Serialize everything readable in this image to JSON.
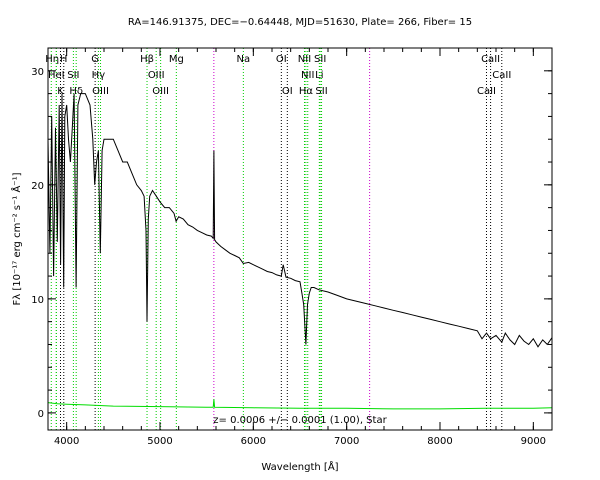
{
  "chart_data": {
    "type": "line",
    "title": "RA=146.91375, DEC=−0.64448, MJD=51630, Plate= 266, Fiber= 15",
    "xlabel": "Wavelength [Å]",
    "ylabel": "Fλ [10⁻¹⁷ erg cm⁻² s⁻¹ Å⁻¹]",
    "xlim": [
      3800,
      9200
    ],
    "ylim": [
      -1.5,
      32
    ],
    "x_ticks": [
      4000,
      5000,
      6000,
      7000,
      8000,
      9000
    ],
    "y_ticks": [
      0,
      10,
      20,
      30
    ],
    "redshift_label": "z= 0.0006 +/− 0.0001 (1.00), Star",
    "colors": {
      "spectrum": "#000000",
      "error": "#00dd00",
      "line_marker": "#00cc00",
      "sky_marker": "#cc00cc",
      "absorption_marker": "#000000"
    },
    "series": [
      {
        "name": "flux",
        "x": [
          3800,
          3820,
          3840,
          3860,
          3880,
          3900,
          3920,
          3935,
          3950,
          3968,
          3980,
          4000,
          4020,
          4040,
          4060,
          4080,
          4101,
          4120,
          4150,
          4200,
          4250,
          4280,
          4300,
          4320,
          4340,
          4360,
          4380,
          4400,
          4450,
          4500,
          4550,
          4600,
          4650,
          4700,
          4750,
          4800,
          4830,
          4850,
          4861,
          4875,
          4890,
          4920,
          4960,
          5000,
          5050,
          5100,
          5150,
          5172,
          5200,
          5250,
          5300,
          5350,
          5400,
          5450,
          5500,
          5550,
          5570,
          5577,
          5585,
          5600,
          5650,
          5700,
          5750,
          5800,
          5850,
          5893,
          5950,
          6000,
          6050,
          6100,
          6150,
          6200,
          6250,
          6300,
          6320,
          6350,
          6400,
          6450,
          6500,
          6520,
          6540,
          6563,
          6580,
          6600,
          6620,
          6650,
          6700,
          6750,
          6800,
          6900,
          7000,
          7100,
          7200,
          7300,
          7400,
          7500,
          7600,
          7700,
          7800,
          7900,
          8000,
          8100,
          8200,
          8300,
          8400,
          8450,
          8498,
          8542,
          8600,
          8662,
          8700,
          8750,
          8800,
          8850,
          8900,
          8950,
          9000,
          9050,
          9100,
          9150,
          9200
        ],
        "y": [
          24,
          14,
          26,
          12,
          25,
          15,
          27,
          13,
          28,
          11,
          26,
          27,
          24,
          22,
          25,
          28,
          11,
          27,
          28,
          28,
          27,
          24,
          20,
          22,
          23,
          14,
          23,
          24,
          24,
          24,
          23,
          22,
          22,
          21,
          20,
          19.5,
          19,
          16,
          8,
          17,
          19,
          19.5,
          19,
          18.5,
          18,
          18,
          17.5,
          16.8,
          17.2,
          17,
          16.5,
          16.3,
          16,
          15.8,
          15.6,
          15.5,
          15.3,
          23,
          15.2,
          15,
          14.6,
          14.3,
          14.0,
          13.8,
          13.6,
          13.1,
          13.2,
          13.0,
          12.8,
          12.6,
          12.4,
          12.3,
          12.1,
          12.0,
          13,
          11.9,
          11.8,
          11.6,
          11.5,
          10.5,
          9.5,
          6.0,
          9.5,
          10.5,
          11.0,
          11.0,
          10.8,
          10.7,
          10.6,
          10.3,
          10.0,
          9.8,
          9.6,
          9.4,
          9.2,
          9.0,
          8.8,
          8.6,
          8.4,
          8.2,
          8.0,
          7.8,
          7.6,
          7.4,
          7.2,
          6.5,
          7.0,
          6.5,
          6.8,
          6.2,
          7.0,
          6.4,
          6.0,
          6.8,
          6.3,
          6.0,
          6.5,
          5.8,
          6.4,
          6.0,
          6.6
        ]
      },
      {
        "name": "error",
        "x": [
          3800,
          3900,
          4000,
          4200,
          4500,
          5000,
          5500,
          5570,
          5577,
          5585,
          6000,
          6500,
          7000,
          7500,
          8000,
          8500,
          9000,
          9200
        ],
        "y": [
          0.9,
          0.8,
          0.75,
          0.7,
          0.6,
          0.55,
          0.5,
          0.5,
          1.2,
          0.5,
          0.45,
          0.4,
          0.4,
          0.35,
          0.35,
          0.4,
          0.4,
          0.45
        ]
      }
    ],
    "line_markers": [
      {
        "label": "Hη",
        "x": 3835,
        "color": "line",
        "style": "dotted"
      },
      {
        "label": "Hε",
        "x": 3889,
        "color": "line",
        "style": "dotted"
      },
      {
        "label": "HeI",
        "x": 3889,
        "color": "line",
        "style": "dotted"
      },
      {
        "label": "K",
        "x": 3934,
        "color": "abs",
        "style": "dotted"
      },
      {
        "label": "H",
        "x": 3969,
        "color": "abs",
        "style": "dotted"
      },
      {
        "label": "SII",
        "x": 4072,
        "color": "line",
        "style": "dotted"
      },
      {
        "label": "Hδ",
        "x": 4102,
        "color": "line",
        "style": "dotted"
      },
      {
        "label": "G",
        "x": 4305,
        "color": "abs",
        "style": "dotted"
      },
      {
        "label": "Hγ",
        "x": 4340,
        "color": "line",
        "style": "dotted"
      },
      {
        "label": "OIII",
        "x": 4363,
        "color": "line",
        "style": "dotted"
      },
      {
        "label": "Hβ",
        "x": 4861,
        "color": "line",
        "style": "dotted"
      },
      {
        "label": "OIII",
        "x": 4959,
        "color": "line",
        "style": "dotted"
      },
      {
        "label": "OIII",
        "x": 5007,
        "color": "line",
        "style": "dotted"
      },
      {
        "label": "Mg",
        "x": 5175,
        "color": "line",
        "style": "dotted"
      },
      {
        "label": "",
        "x": 5577,
        "color": "sky",
        "style": "dotted"
      },
      {
        "label": "Na",
        "x": 5893,
        "color": "line",
        "style": "dotted"
      },
      {
        "label": "OI",
        "x": 6300,
        "color": "abs",
        "style": "dotted"
      },
      {
        "label": "OI",
        "x": 6364,
        "color": "abs",
        "style": "dotted"
      },
      {
        "label": "NII",
        "x": 6548,
        "color": "line",
        "style": "dotted"
      },
      {
        "label": "Hα",
        "x": 6563,
        "color": "line",
        "style": "dotted"
      },
      {
        "label": "NII",
        "x": 6583,
        "color": "line",
        "style": "dotted"
      },
      {
        "label": "Li",
        "x": 6707,
        "color": "line",
        "style": "dotted"
      },
      {
        "label": "SII",
        "x": 6716,
        "color": "line",
        "style": "dotted"
      },
      {
        "label": "SII",
        "x": 6731,
        "color": "line",
        "style": "dotted"
      },
      {
        "label": "",
        "x": 7246,
        "color": "sky",
        "style": "dotted"
      },
      {
        "label": "CaII",
        "x": 8498,
        "color": "abs",
        "style": "dotted"
      },
      {
        "label": "CaII",
        "x": 8542,
        "color": "abs",
        "style": "dotted"
      },
      {
        "label": "CaII",
        "x": 8662,
        "color": "abs",
        "style": "dotted"
      }
    ],
    "marker_labels": [
      {
        "text": "Hη",
        "x": 3845,
        "row": 1
      },
      {
        "text": "H",
        "x": 3968,
        "row": 1
      },
      {
        "text": "HeI",
        "x": 3889,
        "row": 2
      },
      {
        "text": "SII",
        "x": 4072,
        "row": 2
      },
      {
        "text": "K",
        "x": 3934,
        "row": 3
      },
      {
        "text": "Hδ",
        "x": 4102,
        "row": 3
      },
      {
        "text": "G",
        "x": 4305,
        "row": 1
      },
      {
        "text": "Hγ",
        "x": 4340,
        "row": 2
      },
      {
        "text": "OIII",
        "x": 4363,
        "row": 3
      },
      {
        "text": "Hβ",
        "x": 4861,
        "row": 1
      },
      {
        "text": "OIII",
        "x": 4959,
        "row": 2
      },
      {
        "text": "OIII",
        "x": 5007,
        "row": 3
      },
      {
        "text": "Mg",
        "x": 5175,
        "row": 1
      },
      {
        "text": "Na",
        "x": 5893,
        "row": 1
      },
      {
        "text": "OI",
        "x": 6300,
        "row": 1
      },
      {
        "text": "OI",
        "x": 6364,
        "row": 3
      },
      {
        "text": "NII",
        "x": 6548,
        "row": 1
      },
      {
        "text": "SII",
        "x": 6716,
        "row": 1
      },
      {
        "text": "NII",
        "x": 6583,
        "row": 2
      },
      {
        "text": "Li",
        "x": 6707,
        "row": 2
      },
      {
        "text": "Hα",
        "x": 6563,
        "row": 3
      },
      {
        "text": "SII",
        "x": 6731,
        "row": 3
      },
      {
        "text": "CaII",
        "x": 8542,
        "row": 1
      },
      {
        "text": "CaII",
        "x": 8662,
        "row": 2
      },
      {
        "text": "CaII",
        "x": 8498,
        "row": 3
      }
    ]
  }
}
